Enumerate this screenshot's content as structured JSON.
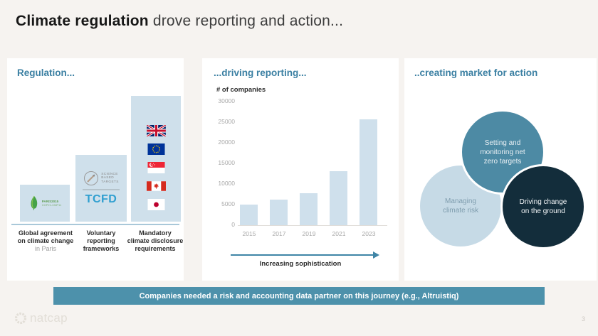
{
  "slide": {
    "title": {
      "bold": "Climate regulation",
      "rest": " drove reporting and action..."
    },
    "banner": "Companies needed a risk and accounting data partner on this journey (e.g., Altruistiq)",
    "footer": {
      "logo_text": "natcap",
      "page_number": "3"
    }
  },
  "regulation": {
    "header": "Regulation...",
    "paris_logo": {
      "line1": "PARIS2015",
      "line2": "COP21-CMP11"
    },
    "sbt_logo": {
      "lines": [
        "SCIENCE",
        "BASED",
        "TARGETS"
      ]
    },
    "tcfd_logo": "TCFD",
    "flags": [
      "uk",
      "eu",
      "singapore",
      "canada",
      "japan"
    ],
    "captions": [
      {
        "lines": [
          "Global agreement",
          "on climate change"
        ],
        "muted": "in Paris"
      },
      {
        "lines": [
          "Voluntary",
          "reporting",
          "frameworks"
        ],
        "muted": ""
      },
      {
        "lines": [
          "Mandatory",
          "climate disclosure",
          "requirements"
        ],
        "muted": ""
      }
    ]
  },
  "reporting": {
    "header": "...driving reporting...",
    "arrow_label": "Increasing sophistication"
  },
  "action": {
    "header": "..creating market for action",
    "circles": [
      {
        "id": "net-zero-targets",
        "lines": [
          "Setting and",
          "monitoring net",
          "zero targets"
        ],
        "fill": "#4d8aa4",
        "text_color": "#e9f0f4"
      },
      {
        "id": "managing-climate-risk",
        "lines": [
          "Managing",
          "climate risk"
        ],
        "fill": "#c6dae6",
        "text_color": "#7f9dae"
      },
      {
        "id": "driving-change-on-the-ground",
        "lines": [
          "Driving change",
          "on the ground"
        ],
        "fill": "#132d3b",
        "text_color": "#f2f5f7"
      }
    ]
  },
  "chart_data": {
    "type": "bar",
    "categories": [
      "2015",
      "2017",
      "2019",
      "2021",
      "2023"
    ],
    "values": [
      4900,
      6100,
      7800,
      13000,
      25500
    ],
    "title": "...driving reporting...",
    "xlabel": "",
    "ylabel": "# of companies",
    "ylim": [
      0,
      30000
    ],
    "yticks": [
      0,
      5000,
      10000,
      15000,
      20000,
      25000,
      30000
    ],
    "grid": false,
    "legend": null,
    "bar_color": "#cfe0ec",
    "annotation": "Increasing sophistication"
  },
  "colors": {
    "page_background": "#f6f3f0",
    "card_background": "#ffffff",
    "accent_teal_header": "#3a7fa2",
    "bar_fill": "#cfe0ec",
    "banner_fill": "#4d91ab",
    "circle_teal": "#4d8aa4",
    "circle_light": "#c6dae6",
    "circle_dark": "#132d3b",
    "tcfd_blue": "#2f9fd0",
    "arrow_teal": "#3f85a6"
  }
}
